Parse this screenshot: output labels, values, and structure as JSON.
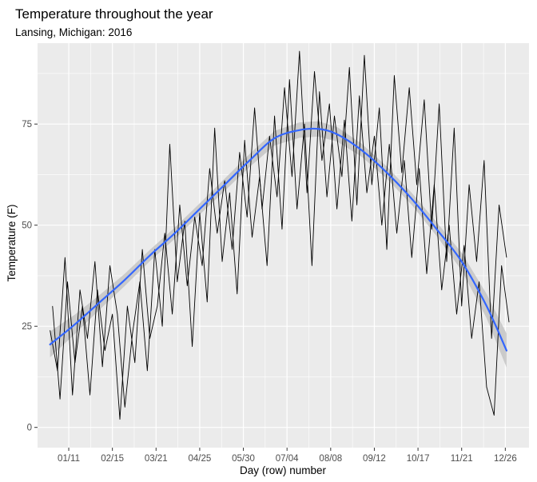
{
  "chart_data": {
    "type": "line",
    "title": "Temperature throughout the year",
    "subtitle": "Lansing, Michigan: 2016",
    "xlabel": "Day (row) number",
    "ylabel": "Temperature (F)",
    "xlim": [
      -10,
      384
    ],
    "ylim": [
      -5,
      95
    ],
    "x_ticks": [
      {
        "value": 15,
        "label": "01/11"
      },
      {
        "value": 50,
        "label": "02/15"
      },
      {
        "value": 85,
        "label": "03/21"
      },
      {
        "value": 120,
        "label": "04/25"
      },
      {
        "value": 155,
        "label": "05/30"
      },
      {
        "value": 190,
        "label": "07/04"
      },
      {
        "value": 225,
        "label": "08/08"
      },
      {
        "value": 260,
        "label": "09/12"
      },
      {
        "value": 295,
        "label": "10/17"
      },
      {
        "value": 330,
        "label": "11/21"
      },
      {
        "value": 365,
        "label": "12/26"
      }
    ],
    "y_ticks": [
      {
        "value": 0,
        "label": "0"
      },
      {
        "value": 25,
        "label": "25"
      },
      {
        "value": 50,
        "label": "50"
      },
      {
        "value": 75,
        "label": "75"
      }
    ],
    "grid": true,
    "series": [
      {
        "type": "line",
        "color": "#000000",
        "x": [
          0,
          6,
          12,
          18,
          24,
          30,
          36,
          42,
          48,
          54,
          60,
          66,
          72,
          78,
          84,
          90,
          96,
          102,
          108,
          114,
          120,
          126,
          132,
          138,
          144,
          150,
          156,
          162,
          168,
          174,
          180,
          186,
          192,
          198,
          204,
          210,
          216,
          222,
          228,
          234,
          240,
          246,
          252,
          258,
          264,
          270,
          276,
          282,
          288,
          294,
          300,
          306,
          312,
          318,
          324,
          330,
          336,
          342,
          348,
          354,
          360,
          366
        ],
        "values": [
          24,
          14,
          42,
          8,
          34,
          22,
          41,
          15,
          40,
          28,
          5,
          23,
          36,
          14,
          44,
          25,
          70,
          36,
          51,
          20,
          53,
          31,
          74,
          41,
          58,
          33,
          71,
          47,
          62,
          40,
          77,
          49,
          86,
          54,
          75,
          40,
          83,
          57,
          77,
          62,
          89,
          55,
          92,
          60,
          79,
          44,
          87,
          63,
          84,
          60,
          81,
          49,
          80,
          41,
          74,
          30,
          60,
          41,
          66,
          22,
          55,
          42
        ]
      },
      {
        "type": "line",
        "color": "#000000",
        "x": [
          2,
          8,
          14,
          20,
          26,
          32,
          38,
          44,
          50,
          56,
          62,
          68,
          74,
          80,
          86,
          92,
          98,
          104,
          110,
          116,
          122,
          128,
          134,
          140,
          146,
          152,
          158,
          164,
          170,
          176,
          182,
          188,
          194,
          200,
          206,
          212,
          218,
          224,
          230,
          236,
          242,
          248,
          254,
          260,
          266,
          272,
          278,
          284,
          290,
          296,
          302,
          308,
          314,
          320,
          326,
          332,
          338,
          344,
          350,
          356,
          362,
          368
        ],
        "values": [
          30,
          7,
          36,
          16,
          30,
          8,
          34,
          19,
          28,
          2,
          30,
          16,
          44,
          22,
          30,
          48,
          28,
          55,
          35,
          52,
          40,
          64,
          48,
          61,
          44,
          68,
          52,
          79,
          54,
          72,
          57,
          84,
          62,
          93,
          58,
          88,
          66,
          80,
          54,
          76,
          51,
          82,
          58,
          72,
          50,
          70,
          48,
          66,
          42,
          64,
          38,
          60,
          34,
          50,
          28,
          45,
          22,
          36,
          10,
          3,
          40,
          26
        ]
      },
      {
        "type": "smooth",
        "color": "#3366ff",
        "band_color": "#c4c4c4",
        "x": [
          0,
          20,
          40,
          60,
          80,
          100,
          120,
          140,
          160,
          180,
          200,
          215,
          230,
          250,
          270,
          290,
          310,
          330,
          350,
          366
        ],
        "values": [
          20.5,
          25.5,
          31,
          36.5,
          42.5,
          48,
          54,
          60,
          66,
          71.5,
          73.5,
          73.8,
          72.5,
          68.5,
          63,
          56.5,
          49,
          41,
          30,
          19
        ],
        "band_half_width": [
          3.2,
          2.4,
          1.8,
          1.5,
          1.4,
          1.4,
          1.4,
          1.5,
          1.6,
          1.8,
          1.9,
          1.9,
          1.8,
          1.6,
          1.5,
          1.5,
          1.7,
          2.2,
          3.0,
          4.2
        ]
      }
    ]
  }
}
